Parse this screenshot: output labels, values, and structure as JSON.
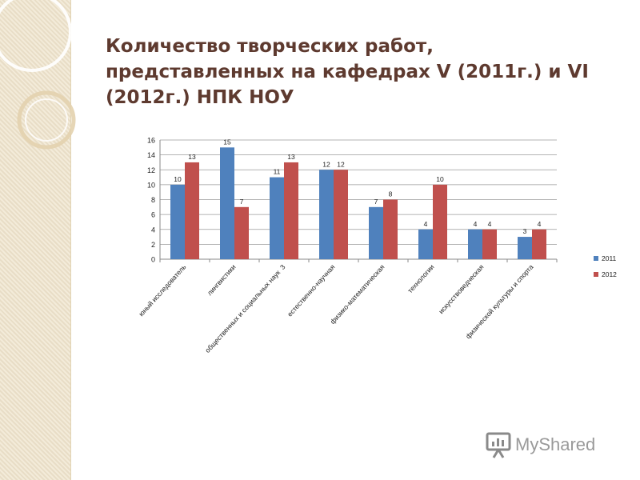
{
  "slide": {
    "title": "Количество творческих работ, представленных на кафедрах V (2011г.) и VI (2012г.) НПК НОУ",
    "watermark_text": "MyShared",
    "colors": {
      "title": "#5e3a2f",
      "strip": "#efe4cc"
    }
  },
  "chart_data": {
    "type": "bar",
    "categories": [
      "юный исследователь",
      "лингвистики",
      "общественных и социальных наук  3",
      "естественно-научная",
      "физико-математическая",
      "технологии",
      "искусствоведческая",
      "физической культуры и спорта"
    ],
    "series": [
      {
        "name": "2011",
        "values": [
          10,
          15,
          11,
          12,
          7,
          4,
          4,
          3
        ],
        "color": "#4f81bd"
      },
      {
        "name": "2012",
        "values": [
          13,
          7,
          13,
          12,
          8,
          10,
          4,
          4
        ],
        "color": "#c0504d"
      }
    ],
    "yticks": [
      "0",
      "2",
      "4",
      "6",
      "8",
      "10",
      "12",
      "14",
      "16"
    ],
    "ylim": [
      0,
      16
    ],
    "grid": true,
    "legend": "right",
    "title": "",
    "xlabel": "",
    "ylabel": ""
  }
}
